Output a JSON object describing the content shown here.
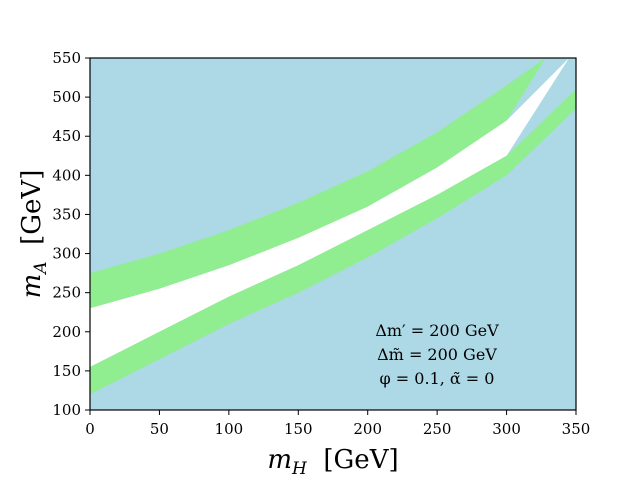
{
  "chart_data": {
    "type": "area",
    "xlabel": "m_H  [GeV]",
    "ylabel": "m_A  [GeV]",
    "xlim": [
      0,
      350
    ],
    "ylim": [
      100,
      550
    ],
    "x_ticks": [
      "0",
      "50",
      "100",
      "150",
      "200",
      "250",
      "300",
      "350"
    ],
    "y_ticks": [
      "100",
      "150",
      "200",
      "250",
      "300",
      "350",
      "400",
      "450",
      "500",
      "550"
    ],
    "grid": false,
    "background_region_color": "#add8e6",
    "bands": [
      {
        "color": "#90ee90",
        "role": "band-upper",
        "x": [
          0,
          50,
          100,
          150,
          200,
          250,
          300,
          328
        ],
        "y_low": [
          230,
          255,
          285,
          320,
          360,
          410,
          470,
          550
        ],
        "y_high": [
          275,
          300,
          330,
          365,
          405,
          455,
          515,
          550
        ]
      },
      {
        "color": "#ffffff",
        "role": "allowed-white",
        "x": [
          0,
          50,
          100,
          150,
          200,
          250,
          300,
          345
        ],
        "y_low": [
          155,
          200,
          245,
          285,
          330,
          375,
          425,
          550
        ],
        "y_high": [
          230,
          255,
          285,
          320,
          360,
          410,
          470,
          550
        ]
      },
      {
        "color": "#90ee90",
        "role": "band-lower",
        "x": [
          0,
          50,
          100,
          150,
          200,
          250,
          300,
          350
        ],
        "y_low": [
          120,
          165,
          210,
          250,
          295,
          345,
          400,
          485
        ],
        "y_high": [
          155,
          200,
          245,
          285,
          330,
          375,
          425,
          510
        ]
      }
    ],
    "annotations": [
      "Δm′ = 200  GeV",
      "Δm̃ = 200  GeV",
      "φ = 0.1,  α̃ = 0"
    ]
  }
}
